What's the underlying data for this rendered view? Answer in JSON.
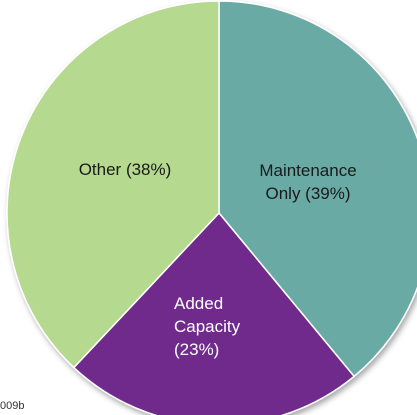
{
  "chart_data": {
    "type": "pie",
    "title": "",
    "slices": [
      {
        "category": "Maintenance Only",
        "value": 39,
        "label_lines": [
          "Maintenance",
          "Only (39%)"
        ],
        "color": "#6aaaa4"
      },
      {
        "category": "Added Capacity",
        "value": 23,
        "label_lines": [
          "Added",
          "Capacity",
          "(23%)"
        ],
        "color": "#6f2a8c"
      },
      {
        "category": "Other",
        "value": 38,
        "label_lines": [
          "Other (38%)"
        ],
        "color": "#b5d98e"
      }
    ],
    "source_note": "009b"
  }
}
